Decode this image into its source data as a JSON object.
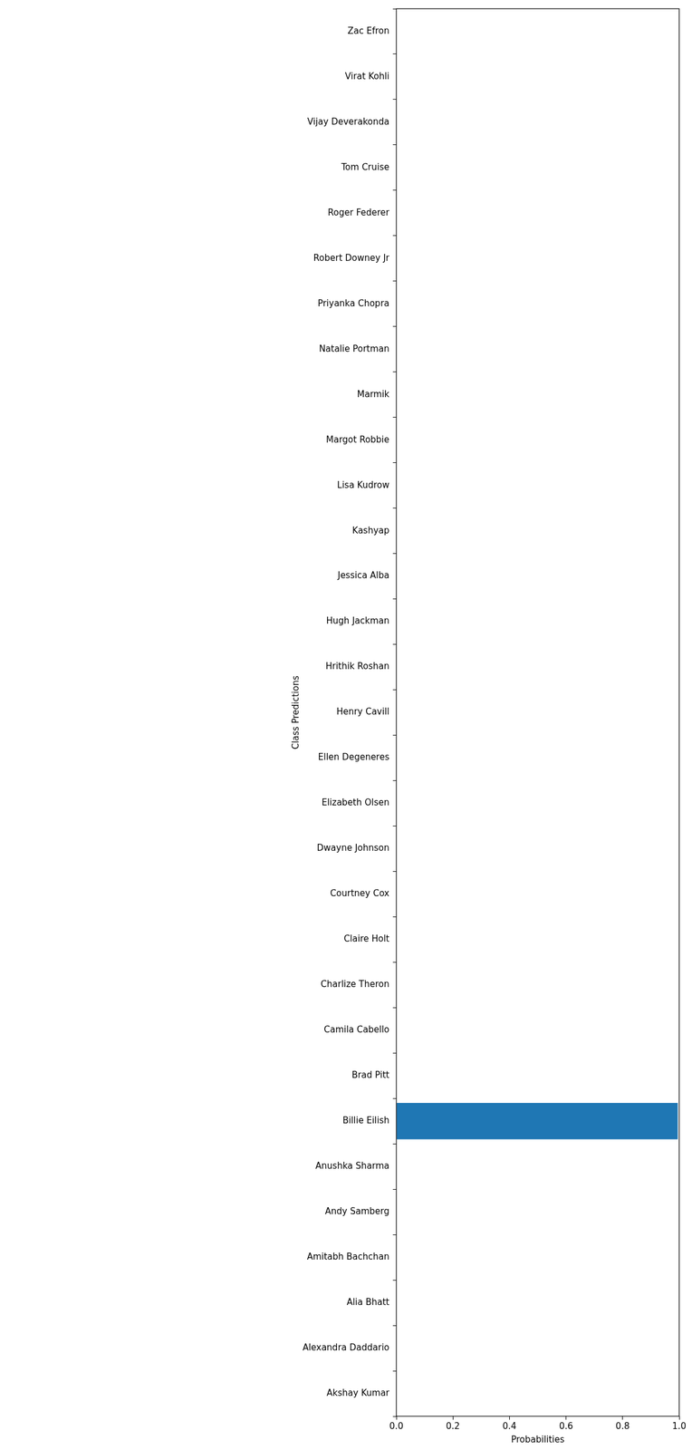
{
  "chart_data": {
    "type": "bar",
    "orientation": "horizontal",
    "x_label": "Probabilities",
    "y_label": "Class Predictions",
    "categories": [
      "Zac Efron",
      "Virat Kohli",
      "Vijay Deverakonda",
      "Tom Cruise",
      "Roger Federer",
      "Robert Downey Jr",
      "Priyanka Chopra",
      "Natalie Portman",
      "Marmik",
      "Margot Robbie",
      "Lisa Kudrow",
      "Kashyap",
      "Jessica Alba",
      "Hugh Jackman",
      "Hrithik Roshan",
      "Henry Cavill",
      "Ellen Degeneres",
      "Elizabeth Olsen",
      "Dwayne Johnson",
      "Courtney Cox",
      "Claire Holt",
      "Charlize Theron",
      "Camila Cabello",
      "Brad Pitt",
      "Billie Eilish",
      "Anushka Sharma",
      "Andy Samberg",
      "Amitabh Bachchan",
      "Alia Bhatt",
      "Alexandra Daddario",
      "Akshay Kumar"
    ],
    "values": [
      0,
      0,
      0,
      0,
      0,
      0,
      0,
      0,
      0,
      0,
      0,
      0,
      0,
      0,
      0,
      0,
      0,
      0,
      0,
      0,
      0,
      0,
      0,
      0,
      0.995,
      0,
      0,
      0,
      0,
      0,
      0
    ],
    "color": "#1f77b4",
    "xlim": [
      0,
      1
    ],
    "xticks": [
      {
        "value": 0,
        "label": "0.0"
      },
      {
        "value": 0.2,
        "label": "0.2"
      },
      {
        "value": 0.4,
        "label": "0.4"
      },
      {
        "value": 0.6,
        "label": "0.6"
      },
      {
        "value": 0.8,
        "label": "0.8"
      },
      {
        "value": 1,
        "label": "1.0"
      }
    ],
    "grid": false
  }
}
